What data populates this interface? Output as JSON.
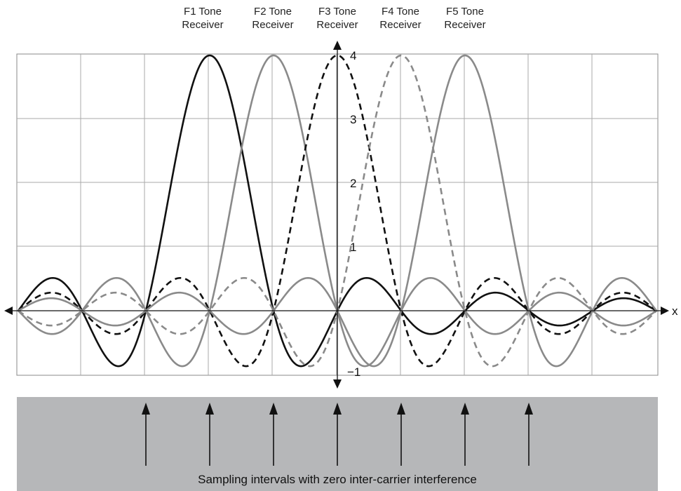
{
  "headers": [
    {
      "line1": "F1 Tone",
      "line2": "Receiver"
    },
    {
      "line1": "F2 Tone",
      "line2": "Receiver"
    },
    {
      "line1": "F3 Tone",
      "line2": "Receiver"
    },
    {
      "line1": "F4 Tone",
      "line2": "Receiver"
    },
    {
      "line1": "F5 Tone",
      "line2": "Receiver"
    }
  ],
  "footer": {
    "caption": "Sampling intervals with zero inter-carrier interference"
  },
  "chart_data": {
    "type": "line",
    "title": "",
    "xlabel": "x",
    "ylabel": "",
    "xlim": [
      -5,
      5
    ],
    "ylim": [
      -1,
      4
    ],
    "yticks": [
      1,
      2,
      3,
      4
    ],
    "ytick_labels": [
      "1",
      "2",
      "3",
      "4"
    ],
    "ymin_label": "−1",
    "grid": true,
    "function": "4*sinc(x - center)",
    "series": [
      {
        "center": -2,
        "color": "#111111",
        "dash": false
      },
      {
        "center": -1,
        "color": "#8a8a8a",
        "dash": false
      },
      {
        "center": 0,
        "color": "#111111",
        "dash": true
      },
      {
        "center": 1,
        "color": "#8a8a8a",
        "dash": true
      },
      {
        "center": 2,
        "color": "#8a8a8a",
        "dash": false
      }
    ],
    "sampling_points": [
      -3,
      -2,
      -1,
      0,
      1,
      2,
      3
    ]
  }
}
